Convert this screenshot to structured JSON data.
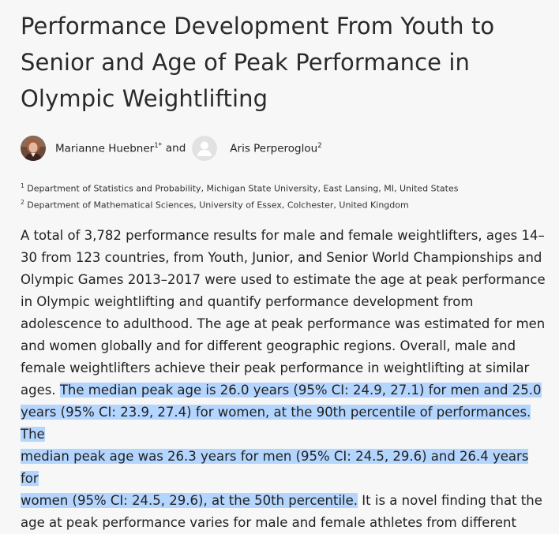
{
  "article": {
    "title_line1": "Performance Development From Youth to",
    "title_line2": "Senior and Age of Peak Performance in",
    "title_line3": "Olympic Weightlifting"
  },
  "authors": {
    "author1_name": "Marianne Huebner",
    "author1_sup": "1*",
    "conjunction": "and",
    "author2_name": "Aris Perperoglou",
    "author2_sup": "2"
  },
  "affiliations": [
    {
      "num": "1",
      "text": "Department of Statistics and Probability, Michigan State University, East Lansing, MI, United States"
    },
    {
      "num": "2",
      "text": "Department of Mathematical Sciences, University of Essex, Colchester, United Kingdom"
    }
  ],
  "abstract": {
    "lines": [
      "A total of 3,782 performance results for male and female weightlifters, ages 14–",
      "30 from 123 countries, from Youth, Junior, and Senior World Championships and",
      "Olympic Games 2013–2017 were used to estimate the age at peak performance",
      "in Olympic weightlifting and quantify performance development from",
      "adolescence to adulthood. The age at peak performance was estimated for men",
      "and women globally and for different geographic regions. Overall, male and",
      "female weightlifters achieve their peak performance in weightlifting at similar"
    ],
    "line8_plain": "ages. ",
    "line8_highlight": "The median peak age is 26.0 years (95% CI: 24.9, 27.1) for men and 25.0",
    "line9_highlight": "years (95% CI: 23.9, 27.4) for women, at the 90th percentile of performances. The",
    "line10_highlight": "median peak age was 26.3 years for men (95% CI: 24.5, 29.6) and 26.4 years for",
    "line11_highlight": "women (95% CI: 24.5, 29.6), at the 50th percentile.",
    "line11_plain": " It is a novel finding that the",
    "line12": "age at peak performance varies for male and female athletes from different"
  },
  "colors": {
    "background": "#f7f7f7",
    "selection_highlight": "#b4d5fe"
  }
}
